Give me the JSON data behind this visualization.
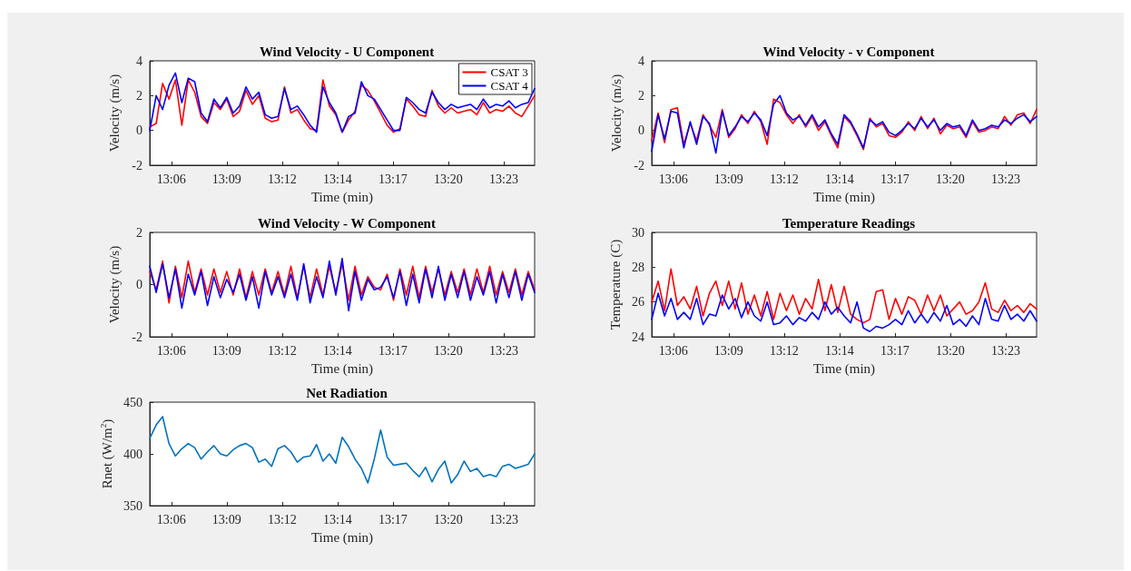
{
  "chart_data": [
    {
      "type": "line",
      "title": "Wind Velocity - U Component",
      "xlabel": "Time (min)",
      "ylabel": "Velocity (m/s)",
      "legend": "top right",
      "x": [
        13.0798,
        13.0853,
        13.0908,
        13.0963,
        13.1018,
        13.1073,
        13.1128,
        13.1183,
        13.1238,
        13.1293,
        13.1348,
        13.1403,
        13.1458,
        13.1513,
        13.1568,
        13.1623,
        13.1678,
        13.1733,
        13.1788,
        13.1843,
        13.1898,
        13.1953,
        13.2008,
        13.2063,
        13.2118,
        13.2173,
        13.2228,
        13.2283,
        13.2338,
        13.2393,
        13.2448,
        13.2503,
        13.2558,
        13.2613,
        13.2668,
        13.2723,
        13.2778,
        13.2833,
        13.2888,
        13.2943,
        13.2998,
        13.3053,
        13.3108,
        13.3163,
        13.3218,
        13.3273,
        13.3328,
        13.3383,
        13.3438,
        13.3493,
        13.3548,
        13.3603,
        13.3658,
        13.3713,
        13.3768,
        13.3823,
        13.3878,
        13.3933,
        13.3988,
        13.4043,
        13.4098
      ],
      "xlim": [
        13.0798,
        13.4098
      ],
      "xticks": [
        {
          "value": 13.0983,
          "label": "13:06"
        },
        {
          "value": 13.1458,
          "label": "13:09"
        },
        {
          "value": 13.1933,
          "label": "13:12"
        },
        {
          "value": 13.2408,
          "label": "13:14"
        },
        {
          "value": 13.2883,
          "label": "13:17"
        },
        {
          "value": 13.3358,
          "label": "13:20"
        },
        {
          "value": 13.3833,
          "label": "13:23"
        }
      ],
      "ylim": [
        -2,
        4
      ],
      "yticks": [
        -2,
        0,
        2,
        4
      ],
      "series": [
        {
          "name": "CSAT 3",
          "color": "#ff0000",
          "values": [
            0.2,
            0.4,
            2.7,
            1.8,
            2.9,
            0.3,
            2.9,
            2.2,
            0.8,
            0.4,
            1.6,
            1.2,
            1.8,
            0.8,
            1.1,
            2.3,
            1.5,
            2.0,
            0.7,
            0.5,
            0.6,
            2.5,
            1.0,
            1.2,
            0.6,
            0.1,
            0.0,
            2.9,
            1.4,
            0.9,
            -0.1,
            0.6,
            1.1,
            2.6,
            2.3,
            1.7,
            1.0,
            0.3,
            -0.1,
            0.1,
            1.8,
            1.4,
            0.9,
            0.8,
            2.3,
            1.4,
            1.0,
            1.3,
            1.0,
            1.1,
            1.2,
            0.9,
            1.6,
            1.0,
            1.2,
            1.1,
            1.4,
            1.0,
            0.8,
            1.4,
            2.0
          ]
        },
        {
          "name": "CSAT 4",
          "color": "#0000ff",
          "values": [
            0.0,
            2.0,
            1.2,
            2.6,
            3.3,
            1.6,
            3.0,
            2.8,
            1.0,
            0.5,
            1.8,
            1.3,
            1.9,
            1.0,
            1.4,
            2.5,
            1.8,
            2.2,
            0.9,
            0.7,
            0.8,
            2.4,
            1.2,
            1.4,
            0.9,
            0.3,
            -0.1,
            2.5,
            1.6,
            1.0,
            -0.1,
            0.8,
            1.0,
            2.8,
            2.0,
            1.8,
            1.2,
            0.6,
            0.0,
            0.0,
            1.9,
            1.6,
            1.2,
            1.0,
            2.2,
            1.6,
            1.2,
            1.5,
            1.3,
            1.4,
            1.5,
            1.2,
            1.8,
            1.3,
            1.5,
            1.4,
            1.7,
            1.3,
            1.5,
            1.6,
            2.4
          ]
        }
      ]
    },
    {
      "type": "line",
      "title": "Wind Velocity - v Component",
      "xlabel": "Time (min)",
      "ylabel": "Velocity (m/s)",
      "x": [
        13.0798,
        13.0853,
        13.0908,
        13.0963,
        13.1018,
        13.1073,
        13.1128,
        13.1183,
        13.1238,
        13.1293,
        13.1348,
        13.1403,
        13.1458,
        13.1513,
        13.1568,
        13.1623,
        13.1678,
        13.1733,
        13.1788,
        13.1843,
        13.1898,
        13.1953,
        13.2008,
        13.2063,
        13.2118,
        13.2173,
        13.2228,
        13.2283,
        13.2338,
        13.2393,
        13.2448,
        13.2503,
        13.2558,
        13.2613,
        13.2668,
        13.2723,
        13.2778,
        13.2833,
        13.2888,
        13.2943,
        13.2998,
        13.3053,
        13.3108,
        13.3163,
        13.3218,
        13.3273,
        13.3328,
        13.3383,
        13.3438,
        13.3493,
        13.3548,
        13.3603,
        13.3658,
        13.3713,
        13.3768,
        13.3823,
        13.3878,
        13.3933,
        13.3988,
        13.4043,
        13.4098
      ],
      "xlim": [
        13.0798,
        13.4098
      ],
      "xticks": [
        {
          "value": 13.0983,
          "label": "13:06"
        },
        {
          "value": 13.1458,
          "label": "13:09"
        },
        {
          "value": 13.1933,
          "label": "13:12"
        },
        {
          "value": 13.2408,
          "label": "13:14"
        },
        {
          "value": 13.2883,
          "label": "13:17"
        },
        {
          "value": 13.3358,
          "label": "13:20"
        },
        {
          "value": 13.3833,
          "label": "13:23"
        }
      ],
      "ylim": [
        -2,
        4
      ],
      "yticks": [
        -2,
        0,
        2,
        4
      ],
      "series": [
        {
          "color": "#ff0000",
          "values": [
            -0.6,
            1.0,
            -0.7,
            1.2,
            1.3,
            -0.8,
            0.4,
            -0.6,
            0.9,
            0.3,
            -0.4,
            1.2,
            -0.4,
            0.1,
            0.9,
            0.4,
            1.1,
            0.5,
            -0.8,
            1.8,
            1.6,
            0.9,
            0.4,
            0.9,
            0.2,
            0.8,
            0.0,
            0.5,
            -0.3,
            -1.0,
            0.8,
            0.4,
            -0.3,
            -1.1,
            0.7,
            0.2,
            0.4,
            -0.3,
            -0.4,
            -0.1,
            0.5,
            0.0,
            0.8,
            0.1,
            0.7,
            -0.2,
            0.3,
            0.1,
            0.2,
            -0.4,
            0.5,
            -0.1,
            0.0,
            0.2,
            0.1,
            0.8,
            0.3,
            0.9,
            1.0,
            0.4,
            1.2
          ]
        },
        {
          "color": "#0000ff",
          "values": [
            -1.2,
            0.9,
            -0.5,
            1.1,
            1.0,
            -1.0,
            0.5,
            -0.8,
            0.8,
            0.4,
            -1.3,
            1.1,
            -0.3,
            0.2,
            0.8,
            0.5,
            1.0,
            0.6,
            -0.3,
            1.5,
            2.0,
            1.0,
            0.6,
            0.8,
            0.3,
            0.9,
            0.2,
            0.6,
            -0.2,
            -0.8,
            0.9,
            0.5,
            -0.2,
            -1.0,
            0.6,
            0.3,
            0.5,
            -0.1,
            -0.3,
            0.0,
            0.4,
            0.1,
            0.7,
            0.2,
            0.6,
            0.0,
            0.4,
            0.2,
            0.3,
            -0.3,
            0.6,
            0.0,
            0.1,
            0.3,
            0.2,
            0.6,
            0.4,
            0.7,
            0.9,
            0.5,
            0.8
          ]
        }
      ]
    },
    {
      "type": "line",
      "title": "Wind Velocity - W Component",
      "xlabel": "Time (min)",
      "ylabel": "Velocity (m/s)",
      "x": [
        13.0798,
        13.0853,
        13.0908,
        13.0963,
        13.1018,
        13.1073,
        13.1128,
        13.1183,
        13.1238,
        13.1293,
        13.1348,
        13.1403,
        13.1458,
        13.1513,
        13.1568,
        13.1623,
        13.1678,
        13.1733,
        13.1788,
        13.1843,
        13.1898,
        13.1953,
        13.2008,
        13.2063,
        13.2118,
        13.2173,
        13.2228,
        13.2283,
        13.2338,
        13.2393,
        13.2448,
        13.2503,
        13.2558,
        13.2613,
        13.2668,
        13.2723,
        13.2778,
        13.2833,
        13.2888,
        13.2943,
        13.2998,
        13.3053,
        13.3108,
        13.3163,
        13.3218,
        13.3273,
        13.3328,
        13.3383,
        13.3438,
        13.3493,
        13.3548,
        13.3603,
        13.3658,
        13.3713,
        13.3768,
        13.3823,
        13.3878,
        13.3933,
        13.3988,
        13.4043,
        13.4098
      ],
      "xlim": [
        13.0798,
        13.4098
      ],
      "xticks": [
        {
          "value": 13.0983,
          "label": "13:06"
        },
        {
          "value": 13.1458,
          "label": "13:09"
        },
        {
          "value": 13.1933,
          "label": "13:12"
        },
        {
          "value": 13.2408,
          "label": "13:14"
        },
        {
          "value": 13.2883,
          "label": "13:17"
        },
        {
          "value": 13.3358,
          "label": "13:20"
        },
        {
          "value": 13.3833,
          "label": "13:23"
        }
      ],
      "ylim": [
        -2,
        2
      ],
      "yticks": [
        -2,
        0,
        2
      ],
      "series": [
        {
          "color": "#ff0000",
          "values": [
            0.5,
            -0.2,
            0.9,
            -0.7,
            0.7,
            -0.5,
            0.9,
            -0.3,
            0.6,
            -0.4,
            0.6,
            -0.3,
            0.5,
            -0.4,
            0.6,
            -0.5,
            0.5,
            -0.4,
            0.6,
            -0.3,
            0.5,
            -0.4,
            0.7,
            -0.5,
            0.7,
            -0.5,
            0.6,
            -0.4,
            0.7,
            -0.3,
            0.8,
            -0.6,
            0.7,
            -0.4,
            0.3,
            -0.1,
            -0.2,
            0.4,
            -0.6,
            0.6,
            -0.4,
            0.7,
            -0.5,
            0.7,
            -0.3,
            0.6,
            -0.4,
            0.5,
            -0.3,
            0.6,
            -0.4,
            0.6,
            -0.3,
            0.7,
            -0.4,
            0.5,
            -0.3,
            0.6,
            -0.4,
            0.5,
            -0.2
          ]
        },
        {
          "color": "#0000ff",
          "values": [
            0.7,
            -0.3,
            0.8,
            -0.5,
            0.6,
            -0.9,
            0.4,
            -0.4,
            0.5,
            -0.8,
            0.3,
            -0.5,
            0.2,
            -0.3,
            0.4,
            -0.6,
            0.3,
            -0.9,
            0.5,
            -0.4,
            0.3,
            -0.5,
            0.4,
            -0.6,
            0.8,
            -0.7,
            0.3,
            -0.5,
            0.9,
            -0.4,
            1.0,
            -1.0,
            0.5,
            -0.6,
            0.2,
            -0.2,
            -0.1,
            0.3,
            -0.5,
            0.5,
            -0.8,
            0.4,
            -0.7,
            0.6,
            -0.5,
            0.7,
            -0.6,
            0.4,
            -0.5,
            0.5,
            -0.6,
            0.3,
            -0.4,
            0.5,
            -0.7,
            0.4,
            -0.5,
            0.5,
            -0.6,
            0.4,
            -0.3
          ]
        }
      ]
    },
    {
      "type": "line",
      "title": "Temperature Readings",
      "xlabel": "Time (min)",
      "ylabel": "Temperature (C)",
      "x": [
        13.0798,
        13.0853,
        13.0908,
        13.0963,
        13.1018,
        13.1073,
        13.1128,
        13.1183,
        13.1238,
        13.1293,
        13.1348,
        13.1403,
        13.1458,
        13.1513,
        13.1568,
        13.1623,
        13.1678,
        13.1733,
        13.1788,
        13.1843,
        13.1898,
        13.1953,
        13.2008,
        13.2063,
        13.2118,
        13.2173,
        13.2228,
        13.2283,
        13.2338,
        13.2393,
        13.2448,
        13.2503,
        13.2558,
        13.2613,
        13.2668,
        13.2723,
        13.2778,
        13.2833,
        13.2888,
        13.2943,
        13.2998,
        13.3053,
        13.3108,
        13.3163,
        13.3218,
        13.3273,
        13.3328,
        13.3383,
        13.3438,
        13.3493,
        13.3548,
        13.3603,
        13.3658,
        13.3713,
        13.3768,
        13.3823,
        13.3878,
        13.3933,
        13.3988,
        13.4043,
        13.4098
      ],
      "xlim": [
        13.0798,
        13.4098
      ],
      "xticks": [
        {
          "value": 13.0983,
          "label": "13:06"
        },
        {
          "value": 13.1458,
          "label": "13:09"
        },
        {
          "value": 13.1933,
          "label": "13:12"
        },
        {
          "value": 13.2408,
          "label": "13:14"
        },
        {
          "value": 13.2883,
          "label": "13:17"
        },
        {
          "value": 13.3358,
          "label": "13:20"
        },
        {
          "value": 13.3833,
          "label": "13:23"
        }
      ],
      "ylim": [
        24,
        30
      ],
      "yticks": [
        24,
        26,
        28,
        30
      ],
      "series": [
        {
          "color": "#ff0000",
          "values": [
            26.0,
            27.2,
            25.5,
            27.9,
            25.8,
            26.3,
            25.6,
            26.9,
            25.2,
            26.5,
            27.2,
            25.8,
            27.2,
            25.6,
            27.1,
            25.3,
            26.4,
            25.2,
            26.6,
            25.0,
            26.5,
            25.5,
            26.4,
            25.3,
            26.2,
            25.6,
            27.3,
            25.5,
            27.0,
            25.4,
            26.9,
            25.3,
            25.0,
            24.8,
            25.0,
            26.6,
            26.7,
            25.0,
            26.2,
            25.3,
            26.3,
            26.1,
            25.3,
            26.4,
            25.5,
            26.4,
            25.2,
            25.6,
            26.0,
            25.3,
            25.5,
            26.0,
            27.1,
            25.6,
            25.4,
            26.1,
            25.5,
            25.8,
            25.4,
            25.9,
            25.6
          ]
        },
        {
          "color": "#0000ff",
          "values": [
            25.0,
            26.5,
            25.2,
            26.2,
            25.0,
            25.4,
            25.0,
            26.2,
            24.7,
            25.3,
            25.2,
            26.4,
            25.6,
            26.2,
            25.1,
            26.0,
            25.2,
            24.9,
            26.0,
            24.7,
            24.8,
            25.2,
            24.7,
            25.1,
            24.9,
            25.4,
            25.0,
            26.0,
            25.3,
            25.7,
            25.2,
            24.8,
            26.0,
            24.5,
            24.3,
            24.6,
            24.5,
            24.7,
            25.0,
            24.7,
            25.5,
            24.8,
            25.3,
            24.8,
            25.4,
            24.9,
            25.8,
            24.7,
            25.0,
            24.6,
            25.2,
            24.7,
            26.2,
            25.0,
            24.9,
            25.8,
            25.0,
            25.3,
            24.9,
            25.5,
            24.9
          ]
        }
      ]
    },
    {
      "type": "line",
      "title": "Net Radiation",
      "xlabel": "Time (min)",
      "ylabel": "Rnet (W/m$^{2}$)",
      "x": [
        13.0798,
        13.0853,
        13.0908,
        13.0963,
        13.1018,
        13.1073,
        13.1128,
        13.1183,
        13.1238,
        13.1293,
        13.1348,
        13.1403,
        13.1458,
        13.1513,
        13.1568,
        13.1623,
        13.1678,
        13.1733,
        13.1788,
        13.1843,
        13.1898,
        13.1953,
        13.2008,
        13.2063,
        13.2118,
        13.2173,
        13.2228,
        13.2283,
        13.2338,
        13.2393,
        13.2448,
        13.2503,
        13.2558,
        13.2613,
        13.2668,
        13.2723,
        13.2778,
        13.2833,
        13.2888,
        13.2943,
        13.2998,
        13.3053,
        13.3108,
        13.3163,
        13.3218,
        13.3273,
        13.3328,
        13.3383,
        13.3438,
        13.3493,
        13.3548,
        13.3603,
        13.3658,
        13.3713,
        13.3768,
        13.3823,
        13.3878,
        13.3933,
        13.3988,
        13.4043,
        13.4098
      ],
      "xlim": [
        13.0798,
        13.4098
      ],
      "xticks": [
        {
          "value": 13.0983,
          "label": "13:06"
        },
        {
          "value": 13.1458,
          "label": "13:09"
        },
        {
          "value": 13.1933,
          "label": "13:12"
        },
        {
          "value": 13.2408,
          "label": "13:14"
        },
        {
          "value": 13.2883,
          "label": "13:17"
        },
        {
          "value": 13.3358,
          "label": "13:20"
        },
        {
          "value": 13.3833,
          "label": "13:23"
        }
      ],
      "ylim": [
        350,
        450
      ],
      "yticks": [
        350,
        400,
        450
      ],
      "series": [
        {
          "color": "#0072bd",
          "values": [
            415,
            428,
            436,
            410,
            398,
            405,
            410,
            406,
            395,
            402,
            408,
            400,
            398,
            404,
            408,
            410,
            406,
            392,
            395,
            388,
            405,
            408,
            402,
            392,
            397,
            398,
            409,
            393,
            400,
            391,
            416,
            407,
            395,
            386,
            372,
            395,
            423,
            397,
            389,
            390,
            391,
            384,
            378,
            387,
            373,
            385,
            393,
            372,
            380,
            393,
            383,
            386,
            378,
            380,
            378,
            388,
            390,
            386,
            388,
            390,
            400
          ]
        }
      ]
    }
  ]
}
